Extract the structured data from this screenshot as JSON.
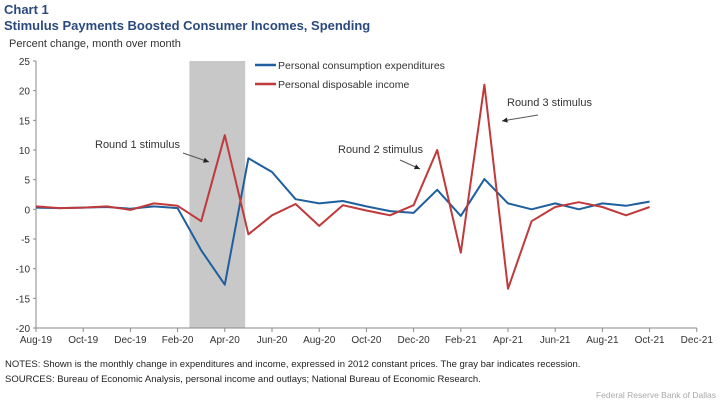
{
  "header": {
    "chart_number": "Chart 1",
    "title": "Stimulus Payments  Boosted Consumer Incomes,  Spending",
    "unit_label": "Percent change,  month over month"
  },
  "footer": {
    "notes": "NOTES: Shown is the monthly change in expenditures  and income,  expressed  in 2012 constant prices.  The gray bar indicates recession.",
    "sources": "SOURCES:  Bureau of Economic  Analysis,  personal income and outlays; National Bureau of Economic  Research.",
    "credit": "Federal Reserve  Bank of Dallas"
  },
  "chart_data": {
    "type": "line",
    "title": "Stimulus Payments  Boosted Consumer Incomes,  Spending",
    "ylabel": "Percent change,  month over month",
    "ylim": [
      -20,
      25
    ],
    "yticks": [
      25,
      20,
      15,
      10,
      5,
      0,
      -5,
      -10,
      -15,
      -20
    ],
    "x": [
      "Aug-19",
      "Sep-19",
      "Oct-19",
      "Nov-19",
      "Dec-19",
      "Jan-20",
      "Feb-20",
      "Mar-20",
      "Apr-20",
      "May-20",
      "Jun-20",
      "Jul-20",
      "Aug-20",
      "Sep-20",
      "Oct-20",
      "Nov-20",
      "Dec-20",
      "Jan-21",
      "Feb-21",
      "Mar-21",
      "Apr-21",
      "May-21",
      "Jun-21",
      "Jul-21",
      "Aug-21",
      "Sep-21",
      "Oct-21"
    ],
    "xtick_labels": [
      "Aug-19",
      "Oct-19",
      "Dec-19",
      "Feb-20",
      "Apr-20",
      "Jun-20",
      "Aug-20",
      "Oct-20",
      "Dec-20",
      "Feb-21",
      "Apr-21",
      "Jun-21",
      "Aug-21",
      "Oct-21",
      "Dec-21"
    ],
    "grid": false,
    "legend_position": "top",
    "recession": {
      "start": "Feb-20",
      "end": "Apr-20",
      "color": "#c8c8c8"
    },
    "series": [
      {
        "name": "Personal consumption expenditures",
        "color": "#1f5f9e",
        "values": [
          0.3,
          0.2,
          0.3,
          0.4,
          0.1,
          0.5,
          0.2,
          -6.9,
          -12.7,
          8.6,
          6.3,
          1.7,
          1.0,
          1.4,
          0.5,
          -0.3,
          -0.6,
          3.3,
          -1.1,
          5.1,
          1.0,
          0.0,
          1.0,
          0.0,
          1.0,
          0.6,
          1.3
        ]
      },
      {
        "name": "Personal disposable income",
        "color": "#c0393b",
        "values": [
          0.5,
          0.2,
          0.3,
          0.5,
          -0.1,
          1.0,
          0.6,
          -2.0,
          12.5,
          -4.2,
          -1.0,
          0.9,
          -2.8,
          0.7,
          -0.2,
          -1.0,
          0.7,
          10.0,
          -7.3,
          21.0,
          -13.4,
          -2.0,
          0.4,
          1.2,
          0.4,
          -1.0,
          0.4
        ]
      }
    ],
    "annotations": [
      {
        "text": "Round  1 stimulus",
        "target": "Apr-20"
      },
      {
        "text": "Round 2 stimulus",
        "target": "Jan-21"
      },
      {
        "text": "Round 3 stimulus",
        "target": "Mar-21"
      }
    ]
  }
}
